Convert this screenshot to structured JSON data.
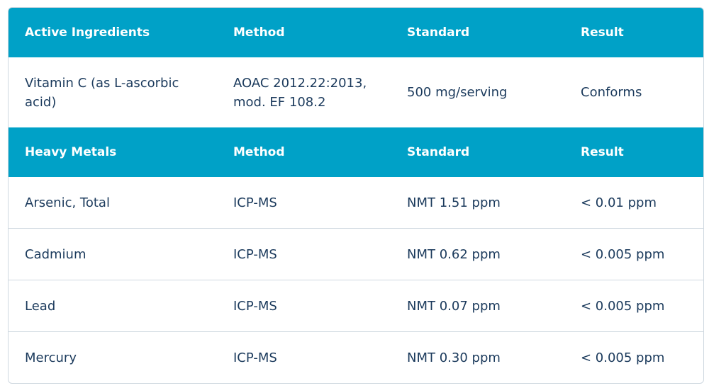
{
  "sections": [
    {
      "header": [
        "Active Ingredients",
        "Method",
        "Standard",
        "Result"
      ],
      "rows": [
        [
          "Vitamin C (as L-ascorbic acid)",
          "AOAC 2012.22:2013, mod. EF 108.2",
          "500 mg/serving",
          "Conforms"
        ]
      ]
    },
    {
      "header": [
        "Heavy Metals",
        "Method",
        "Standard",
        "Result"
      ],
      "rows": [
        [
          "Arsenic, Total",
          "ICP-MS",
          "NMT 1.51 ppm",
          "< 0.01 ppm"
        ],
        [
          "Cadmium",
          "ICP-MS",
          "NMT 0.62 ppm",
          "< 0.005 ppm"
        ],
        [
          "Lead",
          "ICP-MS",
          "NMT 0.07 ppm",
          "< 0.005 ppm"
        ],
        [
          "Mercury",
          "ICP-MS",
          "NMT 0.30 ppm",
          "< 0.005 ppm"
        ]
      ]
    }
  ]
}
